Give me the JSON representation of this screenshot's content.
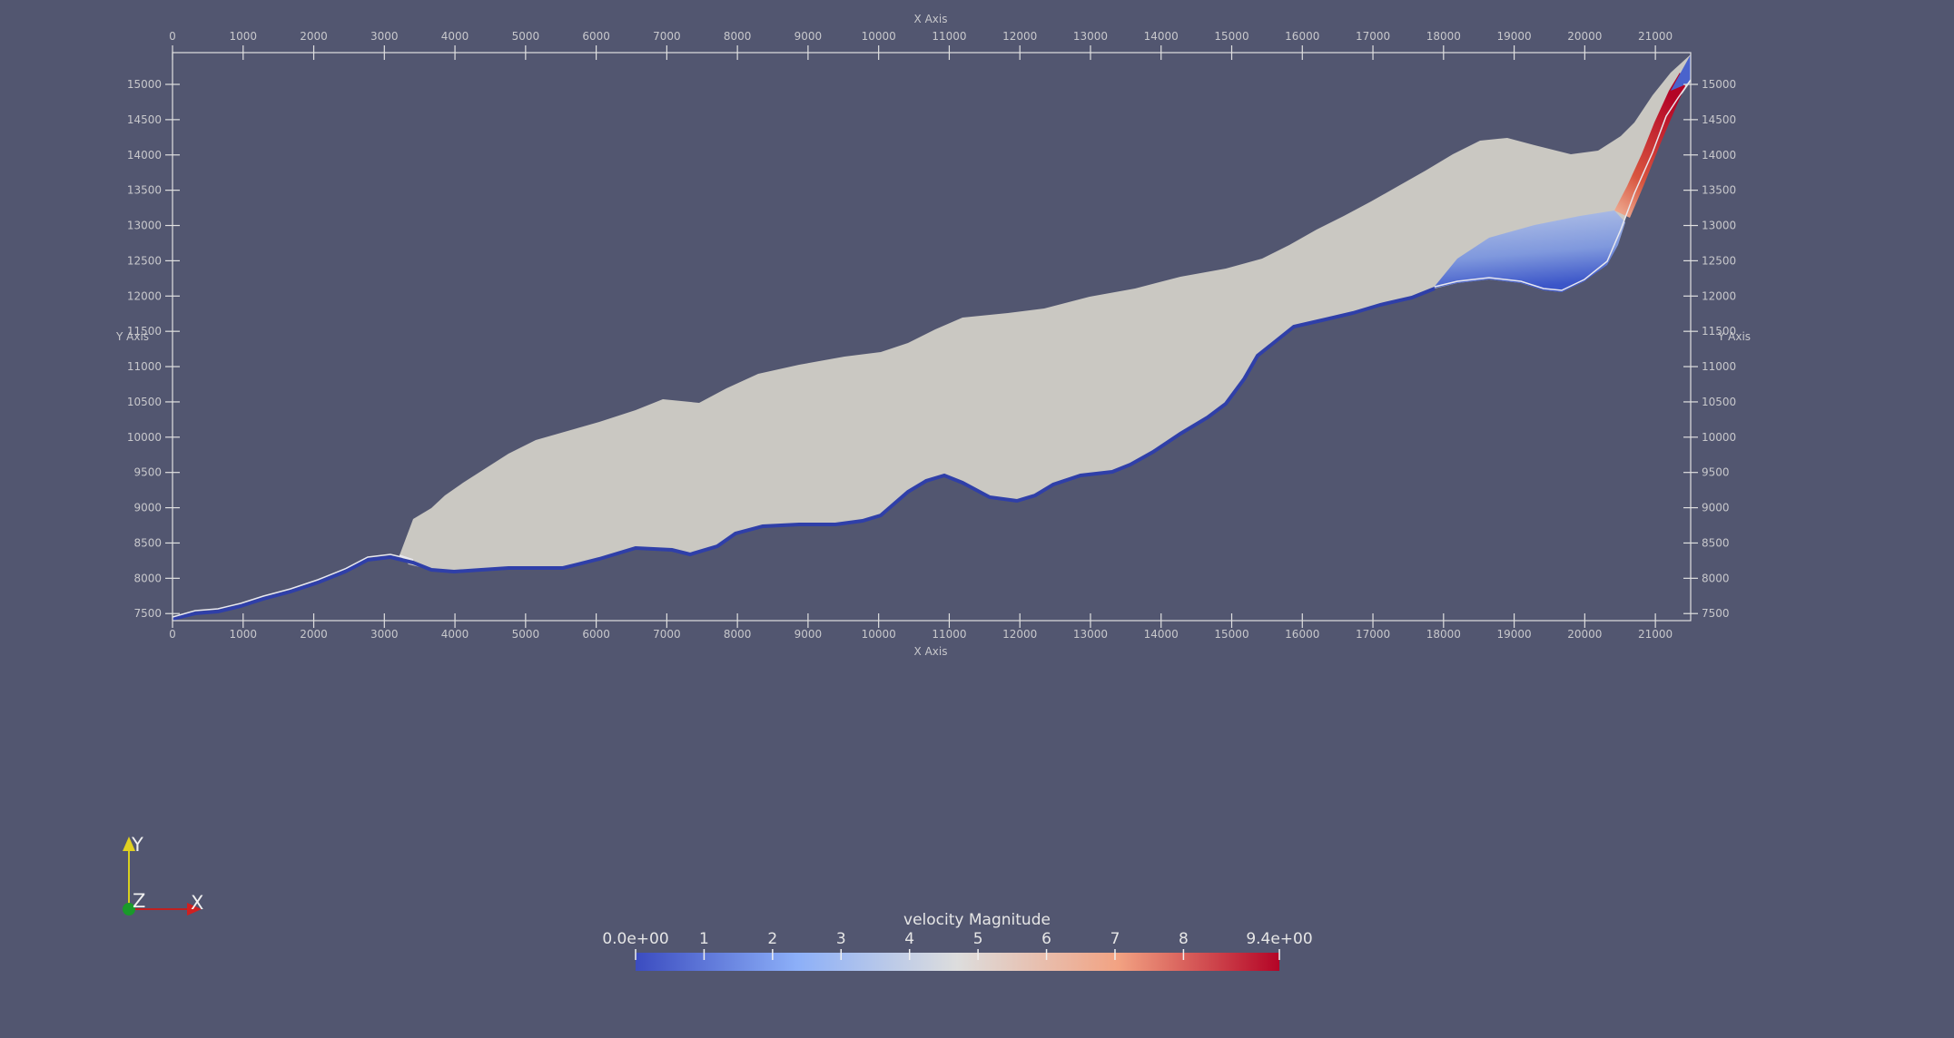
{
  "axes": {
    "x_title": "X Axis",
    "y_title": "Y Axis",
    "x_range": [
      0,
      21500
    ],
    "y_range": [
      7400,
      15450
    ],
    "x_ticks": [
      0,
      1000,
      2000,
      3000,
      4000,
      5000,
      6000,
      7000,
      8000,
      9000,
      10000,
      11000,
      12000,
      13000,
      14000,
      15000,
      16000,
      17000,
      18000,
      19000,
      20000,
      21000
    ],
    "y_ticks": [
      7500,
      8000,
      8500,
      9000,
      9500,
      10000,
      10500,
      11000,
      11500,
      12000,
      12500,
      13000,
      13500,
      14000,
      14500,
      15000
    ]
  },
  "field": {
    "array_name": "velocity Magnitude",
    "range": [
      0.0,
      9.4
    ],
    "range_labels": [
      "0.0e+00",
      "9.4e+00"
    ],
    "tick_values": [
      "1",
      "2",
      "3",
      "4",
      "5",
      "6",
      "7",
      "8"
    ],
    "colormap": "Cool to Warm",
    "colors": {
      "low": "#3b4cc0",
      "mid": "#dddddd",
      "high": "#b40426"
    }
  },
  "orientation_axes": {
    "x": "X",
    "y": "Y",
    "z": "Z"
  },
  "colors": {
    "background": "#525670",
    "grid": "#e0e0e0",
    "surface": "#cac8c2",
    "boundary": "#2f3fa8"
  }
}
